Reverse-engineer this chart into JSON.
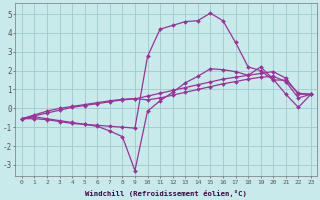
{
  "xlabel": "Windchill (Refroidissement éolien,°C)",
  "bg_color": "#c8eaea",
  "grid_color": "#a0cccc",
  "line_color": "#993399",
  "xlim": [
    -0.5,
    23.5
  ],
  "ylim": [
    -3.6,
    5.6
  ],
  "xtick_labels": [
    "0",
    "1",
    "2",
    "3",
    "4",
    "5",
    "6",
    "7",
    "8",
    "9",
    "10",
    "11",
    "12",
    "13",
    "14",
    "15",
    "16",
    "17",
    "18",
    "19",
    "20",
    "21",
    "22",
    "23"
  ],
  "ytick_values": [
    -3,
    -2,
    -1,
    0,
    1,
    2,
    3,
    4,
    5
  ],
  "series": [
    {
      "x": [
        0,
        1,
        2,
        3,
        4,
        5,
        6,
        7,
        8,
        9,
        10,
        11,
        12,
        13,
        14,
        15,
        16,
        17,
        18,
        19,
        20,
        21,
        22,
        23
      ],
      "y": [
        -0.55,
        -0.45,
        -0.55,
        -0.65,
        -0.75,
        -0.85,
        -0.95,
        -1.2,
        -1.5,
        -3.3,
        -0.15,
        0.4,
        0.85,
        1.35,
        1.7,
        2.1,
        2.05,
        1.95,
        1.75,
        2.2,
        1.55,
        0.75,
        0.05,
        0.75
      ]
    },
    {
      "x": [
        0,
        1,
        2,
        3,
        4,
        5,
        6,
        7,
        8,
        9,
        10,
        11,
        12,
        13,
        14,
        15,
        16,
        17,
        18,
        19,
        20,
        21,
        22,
        23
      ],
      "y": [
        -0.55,
        -0.4,
        -0.25,
        -0.1,
        0.05,
        0.15,
        0.25,
        0.35,
        0.45,
        0.5,
        0.65,
        0.8,
        0.95,
        1.1,
        1.25,
        1.4,
        1.55,
        1.65,
        1.75,
        1.85,
        1.95,
        1.6,
        0.75,
        0.75
      ]
    },
    {
      "x": [
        0,
        1,
        2,
        3,
        4,
        5,
        6,
        7,
        8,
        9,
        10,
        11,
        12,
        13,
        14,
        15,
        16,
        17,
        18,
        19,
        20,
        21,
        22,
        23
      ],
      "y": [
        -0.55,
        -0.35,
        -0.15,
        0.0,
        0.1,
        0.2,
        0.3,
        0.4,
        0.48,
        0.52,
        0.45,
        0.55,
        0.7,
        0.85,
        1.0,
        1.15,
        1.3,
        1.42,
        1.55,
        1.65,
        1.7,
        1.42,
        0.55,
        0.75
      ]
    },
    {
      "x": [
        0,
        1,
        2,
        3,
        4,
        5,
        6,
        7,
        8,
        9,
        10,
        11,
        12,
        13,
        14,
        15,
        16,
        17,
        18,
        19,
        20,
        21,
        22,
        23
      ],
      "y": [
        -0.55,
        -0.55,
        -0.6,
        -0.7,
        -0.8,
        -0.85,
        -0.9,
        -0.95,
        -1.0,
        -1.05,
        2.75,
        4.2,
        4.4,
        4.6,
        4.65,
        5.05,
        4.65,
        3.5,
        2.2,
        2.0,
        1.5,
        1.5,
        0.8,
        0.75
      ]
    }
  ]
}
